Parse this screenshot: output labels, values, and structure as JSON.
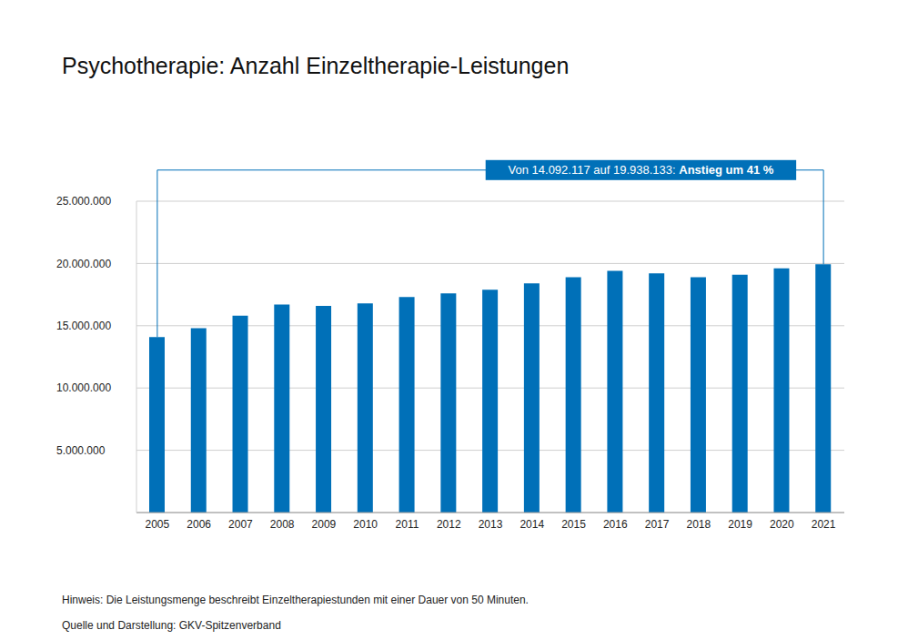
{
  "chart_data": {
    "type": "bar",
    "title": "Psychotherapie: Anzahl Einzeltherapie-Leistungen",
    "categories": [
      "2005",
      "2006",
      "2007",
      "2008",
      "2009",
      "2010",
      "2011",
      "2012",
      "2013",
      "2014",
      "2015",
      "2016",
      "2017",
      "2018",
      "2019",
      "2020",
      "2021"
    ],
    "values": [
      14092117,
      14800000,
      15800000,
      16700000,
      16600000,
      16800000,
      17300000,
      17600000,
      17900000,
      18400000,
      18900000,
      19400000,
      19200000,
      18900000,
      19100000,
      19600000,
      19938133
    ],
    "color": "#0070b8",
    "ylim": [
      0,
      25000000
    ],
    "yticks": [
      {
        "value": 5000000,
        "label": "5.000.000"
      },
      {
        "value": 10000000,
        "label": "10.000.000"
      },
      {
        "value": 15000000,
        "label": "15.000.000"
      },
      {
        "value": 20000000,
        "label": "20.000.000"
      },
      {
        "value": 25000000,
        "label": "25.000.000"
      }
    ],
    "grid": true,
    "annotation": {
      "text": "Von 14.092.117 auf 19.938.133:",
      "highlight": "Anstieg um 41 %"
    },
    "note": "Hinweis: Die Leistungsmenge beschreibt Einzeltherapiestunden mit einer Dauer von 50 Minuten.",
    "source": "Quelle und Darstellung: GKV-Spitzenverband"
  }
}
